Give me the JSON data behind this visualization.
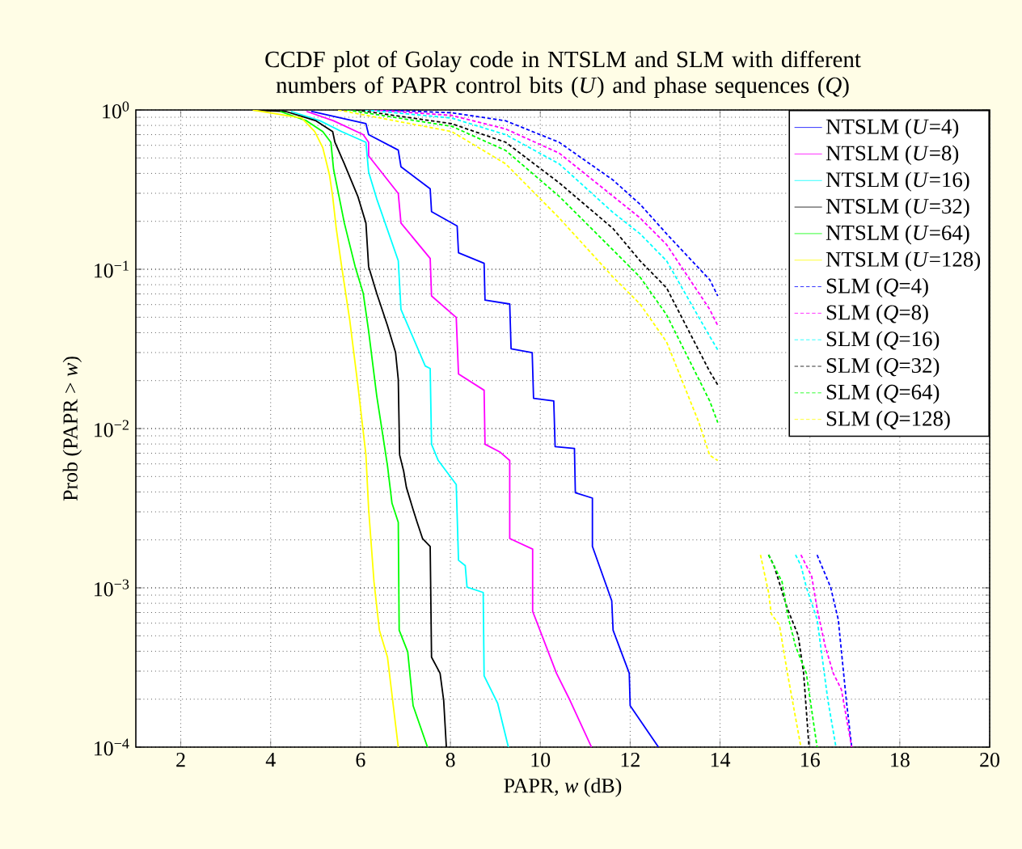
{
  "chart_data": {
    "type": "line",
    "title": "CCDF plot of Golay code in NTSLM and SLM with different numbers of PAPR control bits (*U*) and phase sequences (*Q*)",
    "xlabel": "PAPR, *w* (dB)",
    "ylabel": "Prob (PAPR > *w*)",
    "xlim": [
      1,
      20
    ],
    "xticks": [
      2,
      4,
      6,
      8,
      10,
      12,
      14,
      16,
      18,
      20
    ],
    "ylim": [
      0.0001,
      1
    ],
    "yticks": [
      {
        "value": 0.0001,
        "label": "10$^{−4}$"
      },
      {
        "value": 0.001,
        "label": "10$^{−3}$"
      },
      {
        "value": 0.01,
        "label": "10$^{−2}$"
      },
      {
        "value": 0.1,
        "label": "10$^{−1}$"
      },
      {
        "value": 1,
        "label": "10$^{0}$"
      }
    ],
    "log": "y",
    "grid": true,
    "legend": "top right",
    "series": [
      {
        "name": "NTSLM (*U*=4)",
        "color": "#0000ff",
        "line_style": "solid",
        "x": [
          4.9,
          6.12,
          6.18,
          6.84,
          6.9,
          7.55,
          7.58,
          8.15,
          8.18,
          8.75,
          8.77,
          9.32,
          9.35,
          9.82,
          9.85,
          10.3,
          10.33,
          10.76,
          10.78,
          11.16,
          11.16,
          11.59,
          11.62,
          11.98,
          12.0,
          12.63
        ],
        "values": [
          0.98,
          0.82,
          0.7,
          0.56,
          0.44,
          0.32,
          0.23,
          0.187,
          0.127,
          0.109,
          0.064,
          0.0605,
          0.0317,
          0.03,
          0.0155,
          0.0149,
          0.0077,
          0.0075,
          0.00396,
          0.00366,
          0.00182,
          0.00083,
          0.000542,
          0.000291,
          0.000182,
          0.0001
        ]
      },
      {
        "name": "NTSLM (*U*=8)",
        "color": "#ff00ff",
        "line_style": "solid",
        "x": [
          4.8,
          5.4,
          6.06,
          6.18,
          6.18,
          6.84,
          6.9,
          7.55,
          7.58,
          8.13,
          8.18,
          8.75,
          8.77,
          9.11,
          9.32,
          9.32,
          9.83,
          9.83,
          10.36,
          10.66,
          11.14
        ],
        "values": [
          0.98,
          0.855,
          0.7,
          0.627,
          0.515,
          0.299,
          0.195,
          0.117,
          0.068,
          0.0498,
          0.022,
          0.0174,
          0.00798,
          0.0071,
          0.0063,
          0.00204,
          0.00175,
          0.000713,
          0.000291,
          0.000197,
          0.0001
        ]
      },
      {
        "name": "NTSLM (*U*=16)",
        "color": "#00ffff",
        "line_style": "solid",
        "x": [
          4.45,
          5.1,
          5.58,
          6.12,
          6.18,
          6.36,
          6.84,
          6.9,
          7.44,
          7.55,
          7.58,
          7.73,
          8.13,
          8.18,
          8.33,
          8.37,
          8.73,
          8.75,
          9.05,
          9.29
        ],
        "values": [
          0.98,
          0.855,
          0.732,
          0.627,
          0.408,
          0.277,
          0.113,
          0.056,
          0.0247,
          0.0238,
          0.00798,
          0.0063,
          0.00445,
          0.00149,
          0.00138,
          0.00101,
          0.000935,
          0.00028,
          0.000189,
          0.0001
        ]
      },
      {
        "name": "NTSLM (*U*=32)",
        "color": "#000000",
        "line_style": "solid",
        "x": [
          3.6,
          4.33,
          5.01,
          5.38,
          5.43,
          5.64,
          5.94,
          6.12,
          6.18,
          6.36,
          6.6,
          6.78,
          6.84,
          6.87,
          6.96,
          7.02,
          7.17,
          7.26,
          7.38,
          7.55,
          7.58,
          7.77,
          7.85,
          7.91
        ],
        "values": [
          1,
          0.98,
          0.855,
          0.732,
          0.627,
          0.459,
          0.287,
          0.195,
          0.104,
          0.0707,
          0.0443,
          0.03,
          0.0203,
          0.00683,
          0.0054,
          0.00428,
          0.0031,
          0.00258,
          0.00204,
          0.00182,
          0.000367,
          0.000291,
          0.000197,
          0.0001
        ]
      },
      {
        "name": "NTSLM (*U*=64)",
        "color": "#00ff00",
        "line_style": "solid",
        "x": [
          4.21,
          4.8,
          5.16,
          5.34,
          5.4,
          5.64,
          5.88,
          6.06,
          6.18,
          6.36,
          6.6,
          6.7,
          6.84,
          6.86,
          7.05,
          7.17,
          7.49
        ],
        "values": [
          0.98,
          0.855,
          0.732,
          0.627,
          0.425,
          0.195,
          0.104,
          0.0707,
          0.041,
          0.0161,
          0.00584,
          0.0034,
          0.00258,
          0.000542,
          0.000397,
          0.000182,
          0.0001
        ]
      },
      {
        "name": "NTSLM (*U*=128)",
        "color": "#ffff00",
        "line_style": "solid",
        "x": [
          3.6,
          4.69,
          4.98,
          5.16,
          5.31,
          5.38,
          5.46,
          5.58,
          5.76,
          5.94,
          6.12,
          6.18,
          6.3,
          6.42,
          6.6,
          6.84
        ],
        "values": [
          1,
          0.89,
          0.732,
          0.58,
          0.39,
          0.287,
          0.18,
          0.104,
          0.048,
          0.0188,
          0.00683,
          0.00313,
          0.00109,
          0.000542,
          0.000367,
          0.0001
        ]
      },
      {
        "name": "SLM (*Q*=4)",
        "color": "#0000ff",
        "line_style": "dashed",
        "x": [
          6.5,
          8.03,
          9.23,
          10.42,
          11.62,
          12.22,
          12.81,
          13.77,
          13.95,
          14.5,
          16.16,
          16.46,
          16.63,
          16.81,
          16.93
        ],
        "values": [
          1,
          0.96,
          0.855,
          0.627,
          0.363,
          0.256,
          0.167,
          0.086,
          0.068,
          null,
          0.00161,
          0.00101,
          0.000634,
          0.000197,
          0.0001
        ]
      },
      {
        "name": "SLM (*Q*=8)",
        "color": "#ff00ff",
        "line_style": "dashed",
        "x": [
          6.3,
          8.03,
          9.23,
          10.42,
          11.62,
          12.22,
          12.81,
          13.77,
          13.95,
          14.5,
          15.8,
          16.04,
          16.16,
          16.34,
          16.52,
          16.7,
          16.93
        ],
        "values": [
          1,
          0.925,
          0.76,
          0.536,
          0.287,
          0.21,
          0.143,
          0.056,
          0.0443,
          null,
          0.00161,
          0.00118,
          0.00074,
          0.00043,
          0.000291,
          0.00023,
          0.0001
        ]
      },
      {
        "name": "SLM (*Q*=16)",
        "color": "#00ffff",
        "line_style": "dashed",
        "x": [
          6.1,
          8.03,
          9.23,
          10.42,
          11.62,
          12.22,
          12.81,
          13.77,
          13.95,
          14.5,
          15.68,
          15.8,
          15.92,
          16.16,
          16.4,
          16.58
        ],
        "values": [
          1,
          0.89,
          0.7,
          0.459,
          0.227,
          0.167,
          0.113,
          0.0379,
          0.0312,
          null,
          0.00161,
          0.00138,
          0.00101,
          0.000634,
          0.000197,
          0.0001
        ]
      },
      {
        "name": "SLM (*Q*=32)",
        "color": "#000000",
        "line_style": "dashed",
        "x": [
          5.9,
          8.03,
          9.23,
          10.42,
          11.62,
          12.22,
          12.81,
          13.77,
          13.95,
          14.5,
          15.08,
          15.2,
          15.5,
          15.74,
          15.86,
          15.98
        ],
        "values": [
          1,
          0.82,
          0.627,
          0.349,
          0.18,
          0.113,
          0.0764,
          0.0228,
          0.0188,
          null,
          0.00161,
          0.00138,
          0.00074,
          0.000502,
          0.000291,
          0.0001
        ]
      },
      {
        "name": "SLM (*Q*=64)",
        "color": "#00ff00",
        "line_style": "dashed",
        "x": [
          5.7,
          8.03,
          9.23,
          10.42,
          11.62,
          12.22,
          12.81,
          13.77,
          13.95,
          14.5,
          15.08,
          15.38,
          15.5,
          15.68,
          15.92,
          16.16
        ],
        "values": [
          1,
          0.79,
          0.557,
          0.287,
          0.132,
          0.0893,
          0.0518,
          0.0149,
          0.0109,
          null,
          0.00161,
          0.00109,
          0.000686,
          0.00043,
          0.000291,
          0.0001
        ]
      },
      {
        "name": "SLM (*Q*=128)",
        "color": "#ffff00",
        "line_style": "dashed",
        "x": [
          5.5,
          8.03,
          9.23,
          10.42,
          11.62,
          12.22,
          12.81,
          13.53,
          13.77,
          13.95,
          14.5,
          14.9,
          15.08,
          15.14,
          15.32,
          15.5,
          15.8
        ],
        "values": [
          1,
          0.732,
          0.459,
          0.21,
          0.0893,
          0.0605,
          0.035,
          0.0109,
          0.0068,
          0.0063,
          null,
          0.00161,
          0.000935,
          0.000686,
          0.000586,
          0.000291,
          0.0001
        ]
      }
    ]
  }
}
